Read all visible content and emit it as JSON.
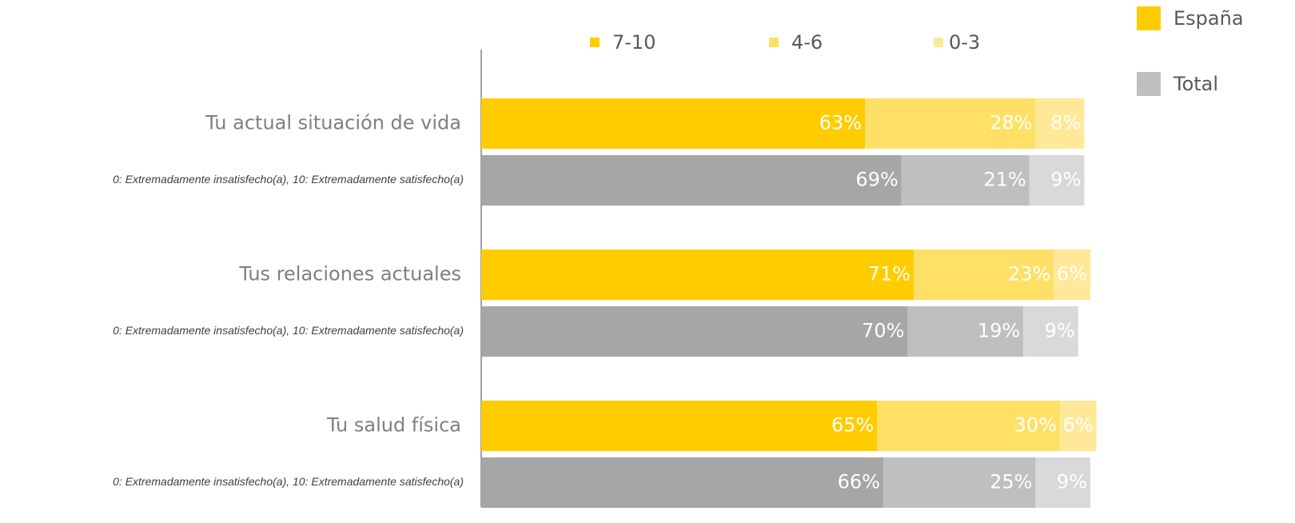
{
  "chart_data": {
    "type": "stacked-bar-horizontal",
    "categories": [
      "Tu actual situación de vida",
      "Tus relaciones actuales",
      "Tu salud física"
    ],
    "subtitles": [
      "0: Extremadamente insatisfecho(a), 10: Extremadamente satisfecho(a)",
      "0: Extremadamente insatisfecho(a), 10: Extremadamente satisfecho(a)",
      "0: Extremadamente insatisfecho(a), 10: Extremadamente satisfecho(a)"
    ],
    "segments": [
      "7-10",
      "4-6",
      "0-3"
    ],
    "segment_legend_colors": [
      "#ffcc00",
      "#ffe066",
      "#ffe999"
    ],
    "groups": [
      {
        "name": "España",
        "color": "#ffcc00",
        "colors": [
          "#ffcc00",
          "#ffe066",
          "#ffe999"
        ],
        "values": [
          [
            63,
            28,
            8
          ],
          [
            71,
            23,
            6
          ],
          [
            65,
            30,
            6
          ]
        ],
        "value_labels": [
          [
            "63%",
            "28%",
            "8%"
          ],
          [
            "71%",
            "23%",
            "6%"
          ],
          [
            "65%",
            "30%",
            "6%"
          ]
        ]
      },
      {
        "name": "Total",
        "color": "#bfbfbf",
        "colors": [
          "#a6a6a6",
          "#bfbfbf",
          "#d9d9d9"
        ],
        "values": [
          [
            69,
            21,
            9
          ],
          [
            70,
            19,
            9
          ],
          [
            66,
            25,
            9
          ]
        ],
        "value_labels": [
          [
            "69%",
            "21%",
            "9%"
          ],
          [
            "70%",
            "19%",
            "9%"
          ],
          [
            "66%",
            "25%",
            "9%"
          ]
        ]
      }
    ],
    "xlim": [
      0,
      100
    ]
  }
}
